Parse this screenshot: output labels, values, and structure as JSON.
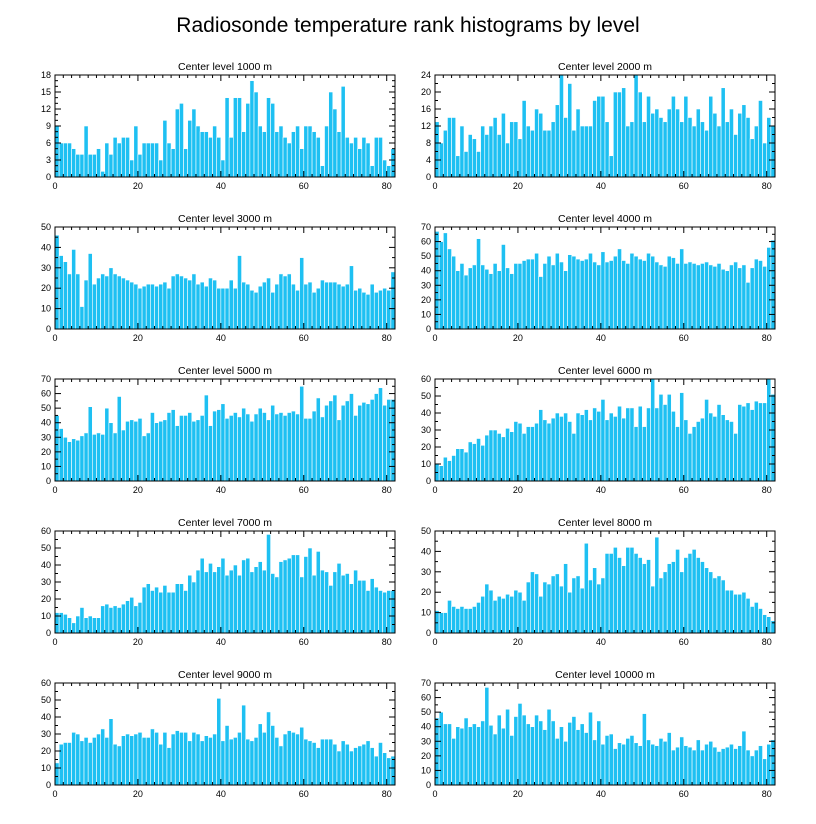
{
  "title": "Radiosonde temperature rank histograms by level",
  "colors": {
    "bar": "#1ec0f2",
    "bar_edge": "#ffffff",
    "axis": "#000000"
  },
  "chart_data": [
    {
      "type": "bar",
      "title": "Center level 1000 m",
      "xlim": [
        0,
        82
      ],
      "ylim": [
        0,
        18
      ],
      "xticks": [
        0,
        20,
        40,
        60,
        80
      ],
      "yticks": [
        0,
        3,
        6,
        9,
        12,
        15,
        18
      ],
      "values": [
        9,
        6,
        6,
        6,
        5,
        4,
        4,
        9,
        4,
        4,
        5,
        1,
        6,
        4,
        7,
        6,
        7,
        7,
        3,
        9,
        4,
        6,
        6,
        6,
        6,
        3,
        10,
        6,
        5,
        12,
        13,
        5,
        10,
        12,
        9,
        8,
        8,
        7,
        9,
        7,
        3,
        14,
        7,
        14,
        14,
        8,
        13,
        17,
        15,
        9,
        8,
        14,
        13,
        8,
        9,
        7,
        6,
        8,
        9,
        5,
        9,
        9,
        8,
        7,
        2,
        9,
        15,
        12,
        8,
        16,
        7,
        6,
        7,
        5,
        7,
        6,
        2,
        7,
        7,
        3,
        2,
        5
      ]
    },
    {
      "type": "bar",
      "title": "Center level 2000 m",
      "xlim": [
        0,
        82
      ],
      "ylim": [
        0,
        24
      ],
      "xticks": [
        0,
        20,
        40,
        60,
        80
      ],
      "yticks": [
        0,
        4,
        8,
        12,
        16,
        20,
        24
      ],
      "values": [
        13,
        8,
        11,
        14,
        14,
        5,
        12,
        6,
        10,
        9,
        6,
        12,
        10,
        12,
        14,
        10,
        15,
        8,
        13,
        13,
        9,
        18,
        12,
        11,
        16,
        15,
        11,
        11,
        13,
        17,
        24,
        14,
        22,
        11,
        16,
        12,
        12,
        12,
        18,
        19,
        19,
        13,
        5,
        20,
        20,
        21,
        12,
        13,
        24,
        20,
        13,
        19,
        15,
        16,
        14,
        13,
        16,
        19,
        16,
        13,
        19,
        14,
        12,
        16,
        13,
        11,
        19,
        15,
        12,
        21,
        13,
        16,
        10,
        15,
        17,
        14,
        9,
        12,
        18,
        8,
        14,
        12
      ]
    },
    {
      "type": "bar",
      "title": "Center level 3000 m",
      "xlim": [
        0,
        82
      ],
      "ylim": [
        0,
        50
      ],
      "xticks": [
        0,
        20,
        40,
        60,
        80
      ],
      "yticks": [
        0,
        10,
        20,
        30,
        40,
        50
      ],
      "values": [
        46,
        36,
        33,
        27,
        39,
        27,
        11,
        24,
        37,
        22,
        25,
        27,
        26,
        30,
        27,
        26,
        25,
        24,
        23,
        22,
        20,
        21,
        22,
        22,
        21,
        22,
        23,
        20,
        26,
        27,
        26,
        25,
        24,
        27,
        22,
        23,
        21,
        25,
        24,
        20,
        20,
        20,
        24,
        20,
        36,
        23,
        22,
        19,
        18,
        21,
        23,
        25,
        18,
        22,
        27,
        26,
        27,
        22,
        19,
        35,
        22,
        23,
        18,
        20,
        24,
        23,
        23,
        23,
        22,
        21,
        22,
        31,
        19,
        20,
        18,
        17,
        22,
        18,
        19,
        20,
        19,
        28
      ]
    },
    {
      "type": "bar",
      "title": "Center level 4000 m",
      "xlim": [
        0,
        82
      ],
      "ylim": [
        0,
        70
      ],
      "xticks": [
        0,
        20,
        40,
        60,
        80
      ],
      "yticks": [
        0,
        10,
        20,
        30,
        40,
        50,
        60,
        70
      ],
      "values": [
        67,
        60,
        66,
        55,
        50,
        40,
        45,
        37,
        42,
        44,
        62,
        44,
        41,
        38,
        45,
        40,
        58,
        42,
        38,
        45,
        45,
        47,
        48,
        48,
        52,
        36,
        45,
        50,
        44,
        52,
        46,
        40,
        51,
        50,
        48,
        47,
        48,
        52,
        46,
        44,
        53,
        46,
        47,
        50,
        55,
        47,
        45,
        52,
        50,
        48,
        47,
        52,
        50,
        46,
        44,
        43,
        50,
        49,
        45,
        55,
        45,
        46,
        45,
        44,
        45,
        46,
        44,
        43,
        45,
        41,
        40,
        44,
        46,
        42,
        44,
        32,
        42,
        48,
        47,
        43,
        56,
        61
      ]
    },
    {
      "type": "bar",
      "title": "Center level 5000 m",
      "xlim": [
        0,
        82
      ],
      "ylim": [
        0,
        70
      ],
      "xticks": [
        0,
        20,
        40,
        60,
        80
      ],
      "yticks": [
        0,
        10,
        20,
        30,
        40,
        50,
        60,
        70
      ],
      "values": [
        45,
        36,
        30,
        27,
        29,
        28,
        31,
        33,
        51,
        32,
        33,
        32,
        50,
        40,
        33,
        58,
        35,
        41,
        42,
        41,
        43,
        31,
        33,
        47,
        40,
        41,
        42,
        47,
        49,
        38,
        45,
        45,
        47,
        41,
        42,
        45,
        59,
        38,
        48,
        49,
        53,
        43,
        45,
        47,
        44,
        50,
        46,
        41,
        46,
        50,
        47,
        42,
        52,
        46,
        47,
        45,
        47,
        48,
        46,
        65,
        43,
        43,
        48,
        57,
        44,
        52,
        55,
        59,
        42,
        52,
        55,
        60,
        45,
        52,
        54,
        53,
        56,
        60,
        64,
        52,
        56,
        56
      ]
    },
    {
      "type": "bar",
      "title": "Center level 6000 m",
      "xlim": [
        0,
        82
      ],
      "ylim": [
        0,
        60
      ],
      "xticks": [
        0,
        20,
        40,
        60,
        80
      ],
      "yticks": [
        0,
        10,
        20,
        30,
        40,
        50,
        60
      ],
      "values": [
        10,
        9,
        14,
        12,
        15,
        19,
        19,
        17,
        23,
        22,
        25,
        21,
        27,
        30,
        30,
        28,
        26,
        31,
        29,
        35,
        34,
        28,
        32,
        32,
        34,
        42,
        36,
        34,
        37,
        40,
        38,
        40,
        35,
        28,
        40,
        39,
        42,
        36,
        43,
        41,
        48,
        36,
        40,
        38,
        44,
        37,
        43,
        43,
        32,
        44,
        32,
        43,
        60,
        43,
        51,
        45,
        51,
        41,
        32,
        52,
        36,
        28,
        32,
        35,
        37,
        48,
        40,
        38,
        45,
        39,
        36,
        35,
        28,
        45,
        44,
        46,
        42,
        47,
        46,
        46,
        60,
        51
      ]
    },
    {
      "type": "bar",
      "title": "Center level 7000 m",
      "xlim": [
        0,
        82
      ],
      "ylim": [
        0,
        60
      ],
      "xticks": [
        0,
        20,
        40,
        60,
        80
      ],
      "yticks": [
        0,
        10,
        20,
        30,
        40,
        50,
        60
      ],
      "values": [
        12,
        12,
        11,
        9,
        6,
        10,
        15,
        9,
        10,
        9,
        9,
        16,
        17,
        15,
        16,
        15,
        17,
        19,
        21,
        16,
        18,
        27,
        29,
        25,
        27,
        24,
        28,
        24,
        24,
        29,
        29,
        25,
        34,
        30,
        37,
        44,
        36,
        41,
        36,
        39,
        44,
        34,
        37,
        40,
        34,
        43,
        44,
        36,
        39,
        42,
        37,
        58,
        35,
        33,
        42,
        43,
        44,
        46,
        46,
        33,
        45,
        50,
        34,
        48,
        37,
        36,
        28,
        36,
        41,
        34,
        35,
        29,
        37,
        31,
        31,
        25,
        32,
        27,
        25,
        24,
        25,
        25
      ]
    },
    {
      "type": "bar",
      "title": "Center level 8000 m",
      "xlim": [
        0,
        82
      ],
      "ylim": [
        0,
        50
      ],
      "xticks": [
        0,
        20,
        40,
        60,
        80
      ],
      "yticks": [
        0,
        10,
        20,
        30,
        40,
        50
      ],
      "values": [
        11,
        10,
        10,
        16,
        13,
        12,
        13,
        12,
        12,
        13,
        15,
        18,
        24,
        21,
        16,
        18,
        17,
        19,
        18,
        21,
        20,
        16,
        25,
        30,
        29,
        18,
        25,
        24,
        28,
        29,
        23,
        34,
        20,
        27,
        28,
        22,
        44,
        26,
        32,
        24,
        27,
        39,
        39,
        42,
        37,
        33,
        42,
        42,
        39,
        37,
        34,
        36,
        23,
        47,
        27,
        30,
        34,
        35,
        41,
        30,
        37,
        39,
        41,
        37,
        35,
        32,
        30,
        27,
        28,
        26,
        21,
        21,
        19,
        19,
        20,
        17,
        13,
        15,
        12,
        9,
        8,
        6
      ]
    },
    {
      "type": "bar",
      "title": "Center level 9000 m",
      "xlim": [
        0,
        82
      ],
      "ylim": [
        0,
        60
      ],
      "xticks": [
        0,
        20,
        40,
        60,
        80
      ],
      "yticks": [
        0,
        10,
        20,
        30,
        40,
        50,
        60
      ],
      "values": [
        13,
        24,
        25,
        25,
        31,
        30,
        26,
        28,
        25,
        28,
        30,
        33,
        28,
        39,
        24,
        23,
        29,
        30,
        29,
        30,
        31,
        28,
        28,
        33,
        31,
        24,
        31,
        22,
        30,
        32,
        31,
        31,
        26,
        31,
        30,
        26,
        29,
        28,
        30,
        51,
        26,
        35,
        27,
        28,
        31,
        47,
        27,
        26,
        28,
        36,
        31,
        43,
        35,
        28,
        23,
        30,
        32,
        31,
        30,
        34,
        27,
        26,
        25,
        22,
        27,
        27,
        27,
        24,
        20,
        26,
        24,
        20,
        22,
        23,
        24,
        26,
        22,
        17,
        25,
        19,
        16,
        17
      ]
    },
    {
      "type": "bar",
      "title": "Center level 10000 m",
      "xlim": [
        0,
        82
      ],
      "ylim": [
        0,
        70
      ],
      "xticks": [
        0,
        20,
        40,
        60,
        80
      ],
      "yticks": [
        0,
        10,
        20,
        30,
        40,
        50,
        60,
        70
      ],
      "values": [
        46,
        50,
        42,
        42,
        32,
        40,
        39,
        46,
        40,
        42,
        40,
        44,
        67,
        41,
        35,
        48,
        39,
        52,
        34,
        47,
        56,
        48,
        42,
        40,
        48,
        44,
        38,
        52,
        44,
        32,
        40,
        30,
        43,
        47,
        38,
        42,
        36,
        50,
        31,
        44,
        28,
        34,
        35,
        25,
        29,
        28,
        32,
        34,
        29,
        27,
        49,
        31,
        28,
        27,
        32,
        30,
        36,
        24,
        26,
        33,
        27,
        26,
        24,
        31,
        24,
        28,
        30,
        26,
        23,
        25,
        26,
        28,
        25,
        27,
        37,
        24,
        20,
        24,
        27,
        18,
        28,
        31
      ]
    }
  ]
}
